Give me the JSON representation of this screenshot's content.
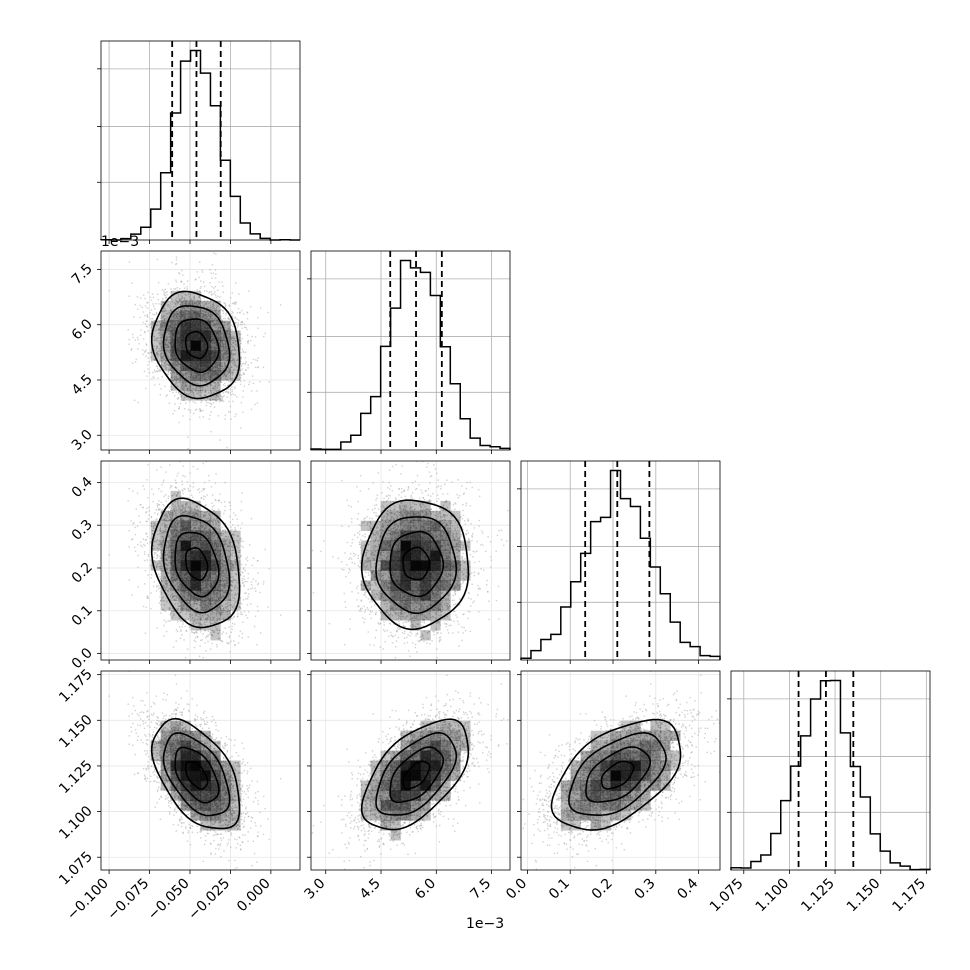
{
  "chart_data": {
    "type": "corner",
    "parameters": [
      {
        "index": 0,
        "range": [
          -0.105,
          0.018
        ],
        "ticks": [
          -0.1,
          -0.075,
          -0.05,
          -0.025,
          0.0
        ],
        "tick_labels": [
          "−0.100",
          "−0.075",
          "−0.050",
          "−0.025",
          "0.000"
        ],
        "quantiles": [
          -0.061,
          -0.046,
          -0.031
        ],
        "mean": -0.046,
        "std": 0.0135
      },
      {
        "index": 1,
        "range": [
          2.6,
          8.0
        ],
        "ticks": [
          3.0,
          4.5,
          6.0,
          7.5
        ],
        "tick_labels": [
          "3.0",
          "4.5",
          "6.0",
          "7.5"
        ],
        "offset_text": "1e−3",
        "quantiles": [
          4.75,
          5.45,
          6.15
        ],
        "mean": 5.45,
        "std": 0.72
      },
      {
        "index": 2,
        "range": [
          -0.015,
          0.45
        ],
        "ticks": [
          0.0,
          0.1,
          0.2,
          0.3,
          0.4
        ],
        "tick_labels": [
          "0.0",
          "0.1",
          "0.2",
          "0.3",
          "0.4"
        ],
        "quantiles": [
          0.135,
          0.21,
          0.285
        ],
        "mean": 0.21,
        "std": 0.075
      },
      {
        "index": 3,
        "range": [
          1.068,
          1.177
        ],
        "ticks": [
          1.075,
          1.1,
          1.125,
          1.15,
          1.175
        ],
        "tick_labels": [
          "1.075",
          "1.100",
          "1.125",
          "1.150",
          "1.175"
        ],
        "quantiles": [
          1.105,
          1.12,
          1.135
        ],
        "mean": 1.12,
        "std": 0.015
      }
    ],
    "correlations": [
      [
        0,
        1,
        -0.15
      ],
      [
        0,
        2,
        -0.25
      ],
      [
        0,
        3,
        -0.5
      ],
      [
        1,
        2,
        0.0
      ],
      [
        1,
        3,
        0.55
      ],
      [
        2,
        3,
        0.5
      ]
    ],
    "histogram_bins": 20,
    "grid": true,
    "colors": {
      "line": "#000000",
      "density": "#000000",
      "grid": "#b0b0b0",
      "samples": "#9a9a9a"
    }
  }
}
